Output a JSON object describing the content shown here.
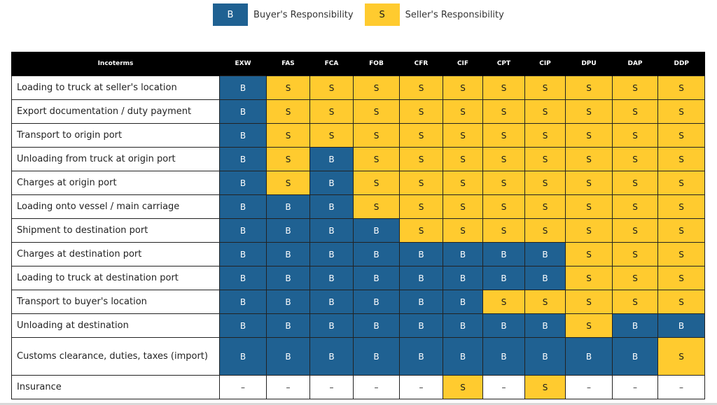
{
  "legend": {
    "buyer": {
      "code": "B",
      "label": "Buyer's Responsibility",
      "color": "#1f6192"
    },
    "seller": {
      "code": "S",
      "label": "Seller's Responsibility",
      "color": "#ffcb2f"
    }
  },
  "table": {
    "header_label": "Incoterms",
    "columns": [
      "EXW",
      "FAS",
      "FCA",
      "FOB",
      "CFR",
      "CIF",
      "CPT",
      "CIP",
      "DPU",
      "DAP",
      "DDP"
    ],
    "rows": [
      {
        "label": "Loading to truck at seller's location",
        "values": [
          "B",
          "S",
          "S",
          "S",
          "S",
          "S",
          "S",
          "S",
          "S",
          "S",
          "S"
        ]
      },
      {
        "label": "Export documentation / duty payment",
        "values": [
          "B",
          "S",
          "S",
          "S",
          "S",
          "S",
          "S",
          "S",
          "S",
          "S",
          "S"
        ]
      },
      {
        "label": "Transport to origin port",
        "values": [
          "B",
          "S",
          "S",
          "S",
          "S",
          "S",
          "S",
          "S",
          "S",
          "S",
          "S"
        ]
      },
      {
        "label": "Unloading from truck at origin port",
        "values": [
          "B",
          "S",
          "B",
          "S",
          "S",
          "S",
          "S",
          "S",
          "S",
          "S",
          "S"
        ]
      },
      {
        "label": "Charges at origin port",
        "values": [
          "B",
          "S",
          "B",
          "S",
          "S",
          "S",
          "S",
          "S",
          "S",
          "S",
          "S"
        ]
      },
      {
        "label": "Loading onto vessel / main carriage",
        "values": [
          "B",
          "B",
          "B",
          "S",
          "S",
          "S",
          "S",
          "S",
          "S",
          "S",
          "S"
        ]
      },
      {
        "label": "Shipment to destination port",
        "values": [
          "B",
          "B",
          "B",
          "B",
          "S",
          "S",
          "S",
          "S",
          "S",
          "S",
          "S"
        ]
      },
      {
        "label": "Charges at destination port",
        "values": [
          "B",
          "B",
          "B",
          "B",
          "B",
          "B",
          "B",
          "B",
          "S",
          "S",
          "S"
        ]
      },
      {
        "label": "Loading to truck at destination port",
        "values": [
          "B",
          "B",
          "B",
          "B",
          "B",
          "B",
          "B",
          "B",
          "S",
          "S",
          "S"
        ]
      },
      {
        "label": "Transport to buyer's location",
        "values": [
          "B",
          "B",
          "B",
          "B",
          "B",
          "B",
          "S",
          "S",
          "S",
          "S",
          "S"
        ]
      },
      {
        "label": "Unloading at destination",
        "values": [
          "B",
          "B",
          "B",
          "B",
          "B",
          "B",
          "B",
          "B",
          "S",
          "B",
          "B"
        ]
      },
      {
        "label": "Customs clearance, duties, taxes (import)",
        "values": [
          "B",
          "B",
          "B",
          "B",
          "B",
          "B",
          "B",
          "B",
          "B",
          "B",
          "S"
        ]
      },
      {
        "label": "Insurance",
        "values": [
          "–",
          "–",
          "–",
          "–",
          "–",
          "S",
          "–",
          "S",
          "–",
          "–",
          "–"
        ]
      }
    ]
  }
}
